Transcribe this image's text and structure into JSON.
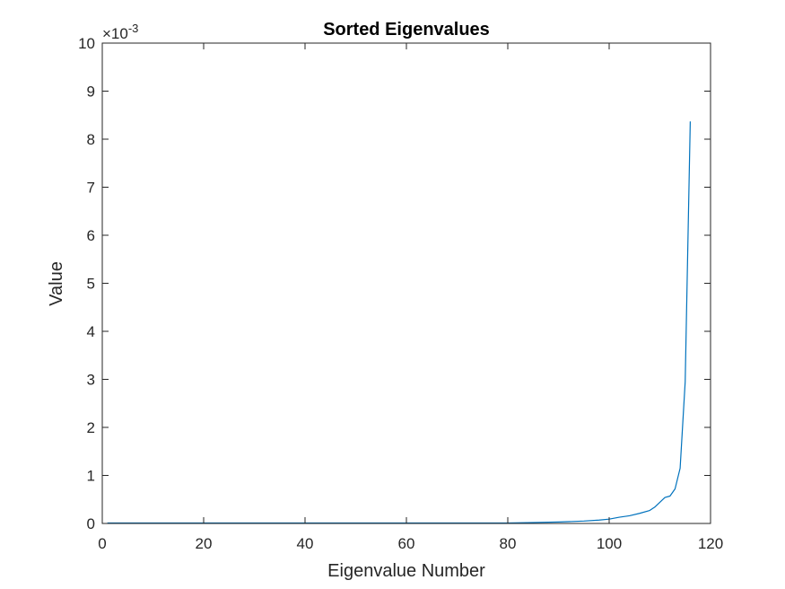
{
  "chart_data": {
    "type": "line",
    "title": "Sorted Eigenvalues",
    "xlabel": "Eigenvalue Number",
    "ylabel": "Value",
    "xlim": [
      0,
      120
    ],
    "ylim": [
      0,
      10
    ],
    "xticks": [
      0,
      20,
      40,
      60,
      80,
      100,
      120
    ],
    "yticks": [
      0,
      1,
      2,
      3,
      4,
      5,
      6,
      7,
      8,
      9,
      10
    ],
    "y_multiplier": "×10",
    "y_exponent": "-3",
    "grid": false,
    "line_color": "#0072BD",
    "series": [
      {
        "x": [
          1,
          10,
          20,
          30,
          40,
          50,
          60,
          70,
          80,
          85,
          90,
          95,
          98,
          100,
          102,
          104,
          106,
          108,
          109,
          110,
          111,
          112,
          113,
          114,
          115,
          116
        ],
        "y": [
          0.01,
          0.01,
          0.01,
          0.01,
          0.01,
          0.01,
          0.01,
          0.01,
          0.01,
          0.02,
          0.03,
          0.05,
          0.07,
          0.09,
          0.13,
          0.16,
          0.21,
          0.27,
          0.34,
          0.44,
          0.54,
          0.57,
          0.72,
          1.15,
          2.95,
          8.37
        ]
      }
    ]
  }
}
